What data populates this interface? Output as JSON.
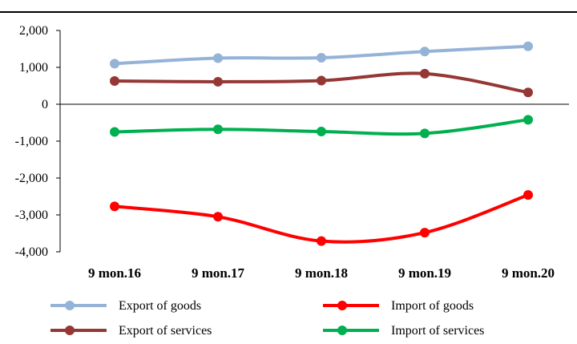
{
  "chart_data": {
    "type": "line",
    "title": "",
    "xlabel": "",
    "ylabel": "",
    "categories": [
      "9 mon.16",
      "9 mon.17",
      "9 mon.18",
      "9 mon.19",
      "9 mon.20"
    ],
    "ylim": [
      -4000,
      2000
    ],
    "yticks": [
      2000,
      1000,
      0,
      -1000,
      -2000,
      -3000,
      -4000
    ],
    "ytick_labels": [
      "2,000",
      "1,000",
      "0",
      "-1,000",
      "-2,000",
      "-3,000",
      "-4,000"
    ],
    "grid": false,
    "legend_position": "bottom",
    "series": [
      {
        "name": "Export of goods",
        "color": "#95b3d7",
        "values": [
          1100,
          1250,
          1260,
          1430,
          1570
        ]
      },
      {
        "name": "Import of goods",
        "color": "#ff0000",
        "values": [
          -2770,
          -3050,
          -3710,
          -3480,
          -2460
        ]
      },
      {
        "name": "Export of services",
        "color": "#953735",
        "values": [
          630,
          610,
          640,
          830,
          320
        ]
      },
      {
        "name": "Import of services",
        "color": "#00b050",
        "values": [
          -750,
          -680,
          -740,
          -790,
          -420
        ]
      }
    ]
  }
}
